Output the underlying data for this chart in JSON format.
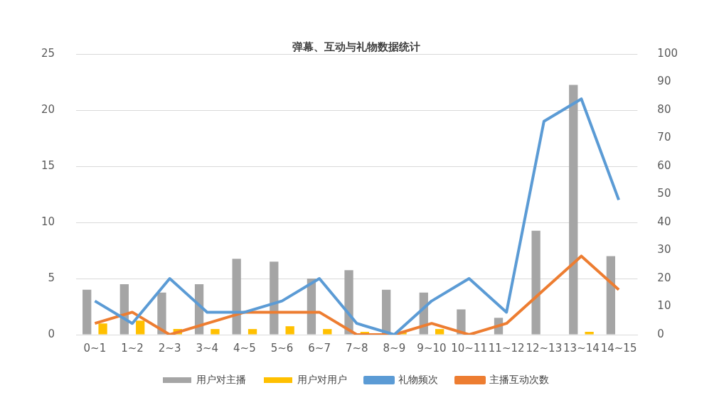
{
  "chart_data": {
    "type": "bar",
    "title": "弹幕、互动与礼物数据统计",
    "categories": [
      "0~1",
      "1~2",
      "2~3",
      "3~4",
      "4~5",
      "5~6",
      "6~7",
      "7~8",
      "8~9",
      "9~10",
      "10~11",
      "11~12",
      "12~13",
      "13~14",
      "14~15"
    ],
    "series": [
      {
        "name": "用户对主播",
        "color": "#a5a5a5",
        "values": [
          4,
          4.5,
          3.75,
          4.5,
          6.75,
          6.5,
          5,
          5.75,
          4,
          3.75,
          2.25,
          1.5,
          9.25,
          22.25,
          7
        ]
      },
      {
        "name": "用户对用户",
        "color": "#ffc000",
        "values": [
          1,
          1.25,
          0.5,
          0.5,
          0.5,
          0.75,
          0.5,
          0.25,
          0.25,
          0.5,
          0,
          0,
          0,
          0.25,
          0
        ]
      },
      {
        "name": "礼物频次",
        "type": "line",
        "axis": "y2",
        "color": "#5b9bd5",
        "values": [
          12,
          4,
          20,
          8,
          8,
          12,
          20,
          4,
          0,
          12,
          20,
          8,
          76,
          84,
          48
        ]
      },
      {
        "name": "主播互动次数",
        "type": "line",
        "axis": "y2",
        "color": "#ed7d31",
        "values": [
          4,
          8,
          0,
          4,
          8,
          8,
          8,
          0,
          0,
          4,
          0,
          4,
          16,
          28,
          16
        ]
      }
    ],
    "ylim": [
      0,
      25
    ],
    "yticks": [
      0,
      5,
      10,
      15,
      20,
      25
    ],
    "y2lim": [
      0,
      100
    ],
    "y2ticks": [
      0,
      10,
      20,
      30,
      40,
      50,
      60,
      70,
      80,
      90,
      100
    ],
    "grid": "y",
    "legend": "bottom",
    "marker": "none"
  }
}
